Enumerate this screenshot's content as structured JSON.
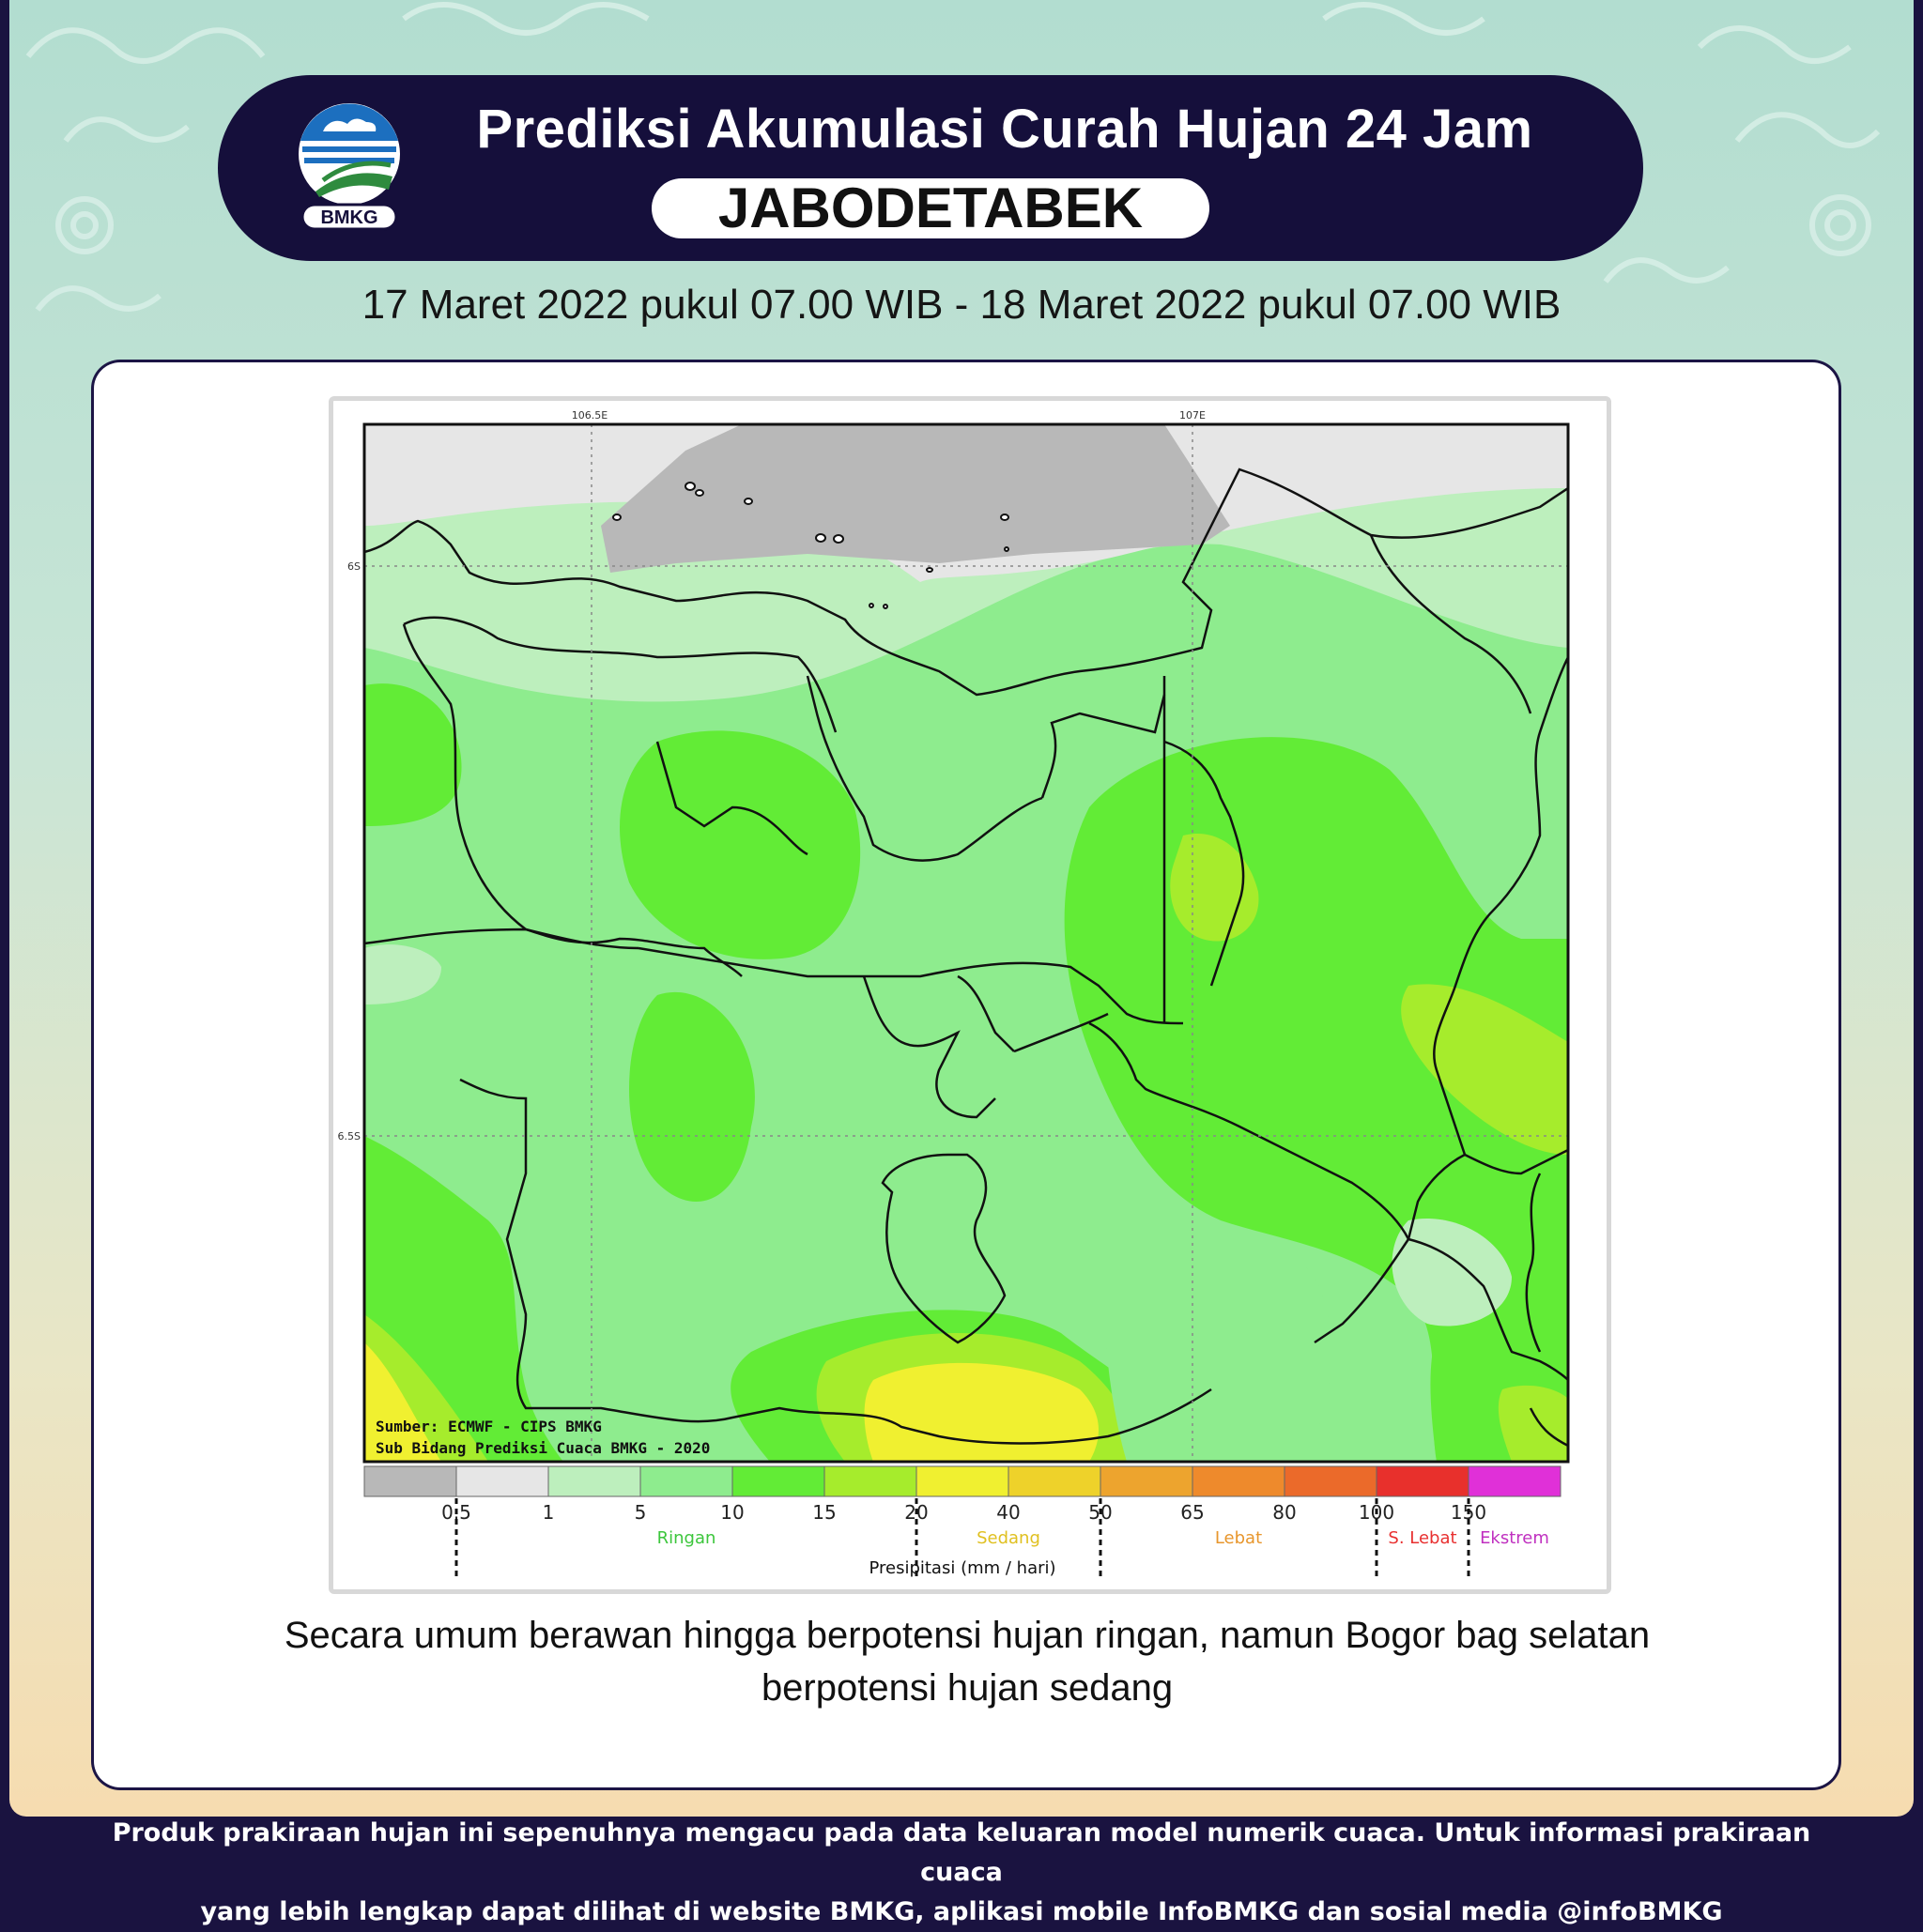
{
  "header": {
    "title": "Prediksi Akumulasi Curah Hujan 24 Jam",
    "region": "JABODETABEK",
    "logo_text": "BMKG",
    "period": "17 Maret 2022 pukul 07.00 WIB - 18 Maret 2022 pukul 07.00 WIB"
  },
  "map": {
    "lon_labels": [
      "106.5E",
      "107E"
    ],
    "lat_labels": [
      "6S",
      "6.5S"
    ],
    "source_line1": "Sumber: ECMWF - CIPS BMKG",
    "source_line2": "Sub Bidang Prediksi Cuaca BMKG - 2020",
    "legend": {
      "colors": [
        "#b8b8b8",
        "#e6e6e6",
        "#bdefbd",
        "#8eec8e",
        "#62ec36",
        "#a6ec2c",
        "#f0f030",
        "#eed22a",
        "#eda42e",
        "#ee8a2c",
        "#eb6a2a",
        "#e8302c",
        "#e030d8"
      ],
      "tick_labels": [
        "0.5",
        "1",
        "5",
        "10",
        "15",
        "20",
        "40",
        "50",
        "65",
        "80",
        "100",
        "150"
      ],
      "categories": [
        {
          "label": "Ringan",
          "color": "#3cc63c"
        },
        {
          "label": "Sedang",
          "color": "#e0c020"
        },
        {
          "label": "Lebat",
          "color": "#e8962c"
        },
        {
          "label": "S. Lebat",
          "color": "#e83030"
        },
        {
          "label": "Ekstrem",
          "color": "#c030c0"
        }
      ],
      "axis_label": "Presipitasi  (mm / hari)"
    }
  },
  "description_line1": "Secara umum berawan hingga berpotensi hujan ringan, namun Bogor bag selatan",
  "description_line2": "berpotensi hujan sedang",
  "footer_line1": "Produk prakiraan hujan ini sepenuhnya mengacu pada data keluaran model numerik cuaca. Untuk informasi prakiraan cuaca",
  "footer_line2": "yang lebih lengkap dapat dilihat di website BMKG, aplikasi mobile InfoBMKG dan sosial media @infoBMKG"
}
